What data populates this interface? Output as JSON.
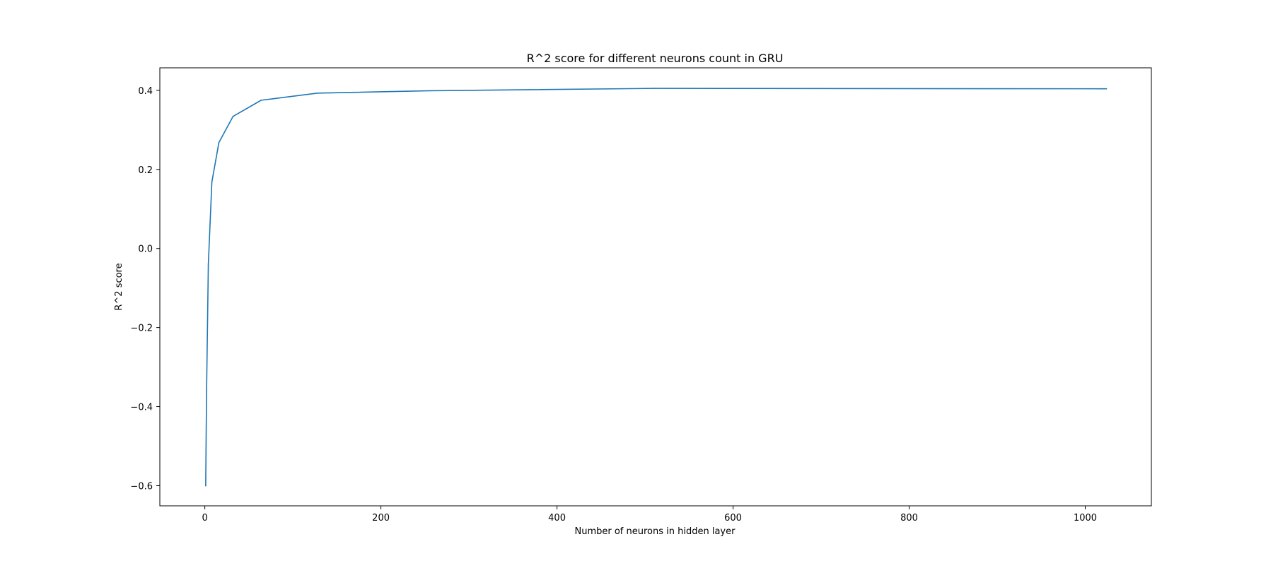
{
  "chart_data": {
    "type": "line",
    "title": "R^2 score for different neurons count in GRU",
    "xlabel": "Number of neurons in hidden layer",
    "ylabel": "R^2 score",
    "xlim": [
      -51.1,
      1075.1
    ],
    "ylim": [
      -0.651,
      0.457
    ],
    "xticks": [
      0,
      200,
      400,
      600,
      800,
      1000
    ],
    "yticks": [
      -0.6,
      -0.4,
      -0.2,
      0.0,
      0.2,
      0.4
    ],
    "xtick_labels": [
      "0",
      "200",
      "400",
      "600",
      "800",
      "1000"
    ],
    "ytick_labels": [
      "−0.6",
      "−0.4",
      "−0.2",
      "0.0",
      "0.2",
      "0.4"
    ],
    "grid": false,
    "series": [
      {
        "color": "#1f77b4",
        "x": [
          1,
          2,
          4,
          8,
          16,
          32,
          64,
          128,
          256,
          512,
          1024
        ],
        "y": [
          -0.6,
          -0.36,
          -0.04,
          0.168,
          0.268,
          0.334,
          0.375,
          0.393,
          0.399,
          0.405,
          0.404
        ]
      }
    ]
  }
}
